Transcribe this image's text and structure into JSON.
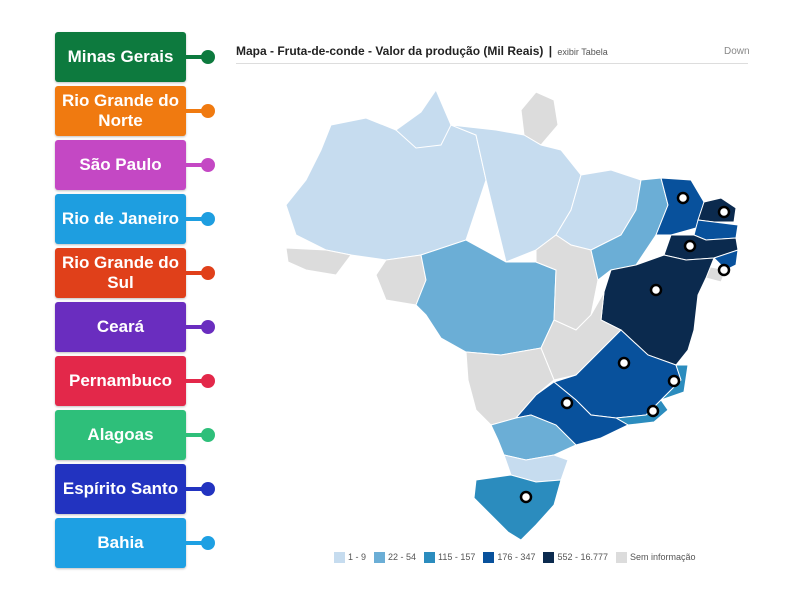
{
  "labels": [
    {
      "text": "Minas Gerais",
      "color": "#0d7a3e"
    },
    {
      "text": "Rio Grande do Norte",
      "color": "#f07a10"
    },
    {
      "text": "São Paulo",
      "color": "#c448c4"
    },
    {
      "text": "Rio de Janeiro",
      "color": "#1e9ee0"
    },
    {
      "text": "Rio Grande do Sul",
      "color": "#e0401a"
    },
    {
      "text": "Ceará",
      "color": "#6a2dbf"
    },
    {
      "text": "Pernambuco",
      "color": "#e3284a"
    },
    {
      "text": "Alagoas",
      "color": "#2ebf7a"
    },
    {
      "text": "Espírito Santo",
      "color": "#2233c0"
    },
    {
      "text": "Bahia",
      "color": "#1ea0e3"
    }
  ],
  "map": {
    "title": "Mapa - Fruta-de-conde - Valor da produção (Mil Reais)",
    "separator": "|",
    "table_link": "exibir Tabela",
    "download": "Down"
  },
  "legend": [
    {
      "label": "1 - 9",
      "color": "#c6dcef"
    },
    {
      "label": "22 - 54",
      "color": "#6baed6"
    },
    {
      "label": "115 - 157",
      "color": "#2b8cbe"
    },
    {
      "label": "176 - 347",
      "color": "#08519c"
    },
    {
      "label": "552 - 16.777",
      "color": "#0b2a4e"
    },
    {
      "label": "Sem informação",
      "color": "#dcdcdc"
    }
  ]
}
